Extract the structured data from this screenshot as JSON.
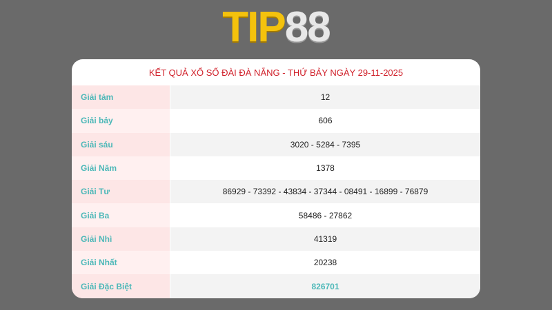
{
  "logo": {
    "text_tip": "TIP",
    "text_num": "88"
  },
  "table": {
    "title": "KẾT QUẢ XỔ SỐ ĐÀI ĐÀ NẴNG - THỨ BẢY NGÀY 29-11-2025",
    "rows": [
      {
        "label": "Giải tám",
        "value": "12"
      },
      {
        "label": "Giải bảy",
        "value": "606"
      },
      {
        "label": "Giải sáu",
        "value": "3020 - 5284 - 7395"
      },
      {
        "label": "Giải Năm",
        "value": "1378"
      },
      {
        "label": "Giải Tư",
        "value": "86929 - 73392 - 43834 - 37344 - 08491 - 16899 - 76879"
      },
      {
        "label": "Giải Ba",
        "value": "58486 - 27862"
      },
      {
        "label": "Giải Nhì",
        "value": "41319"
      },
      {
        "label": "Giải Nhất",
        "value": "20238"
      },
      {
        "label": "Giải Đặc Biệt",
        "value": "826701"
      }
    ]
  },
  "colors": {
    "title": "#d0202a",
    "label": "#4db8b8",
    "background": "#6a6a6a"
  }
}
